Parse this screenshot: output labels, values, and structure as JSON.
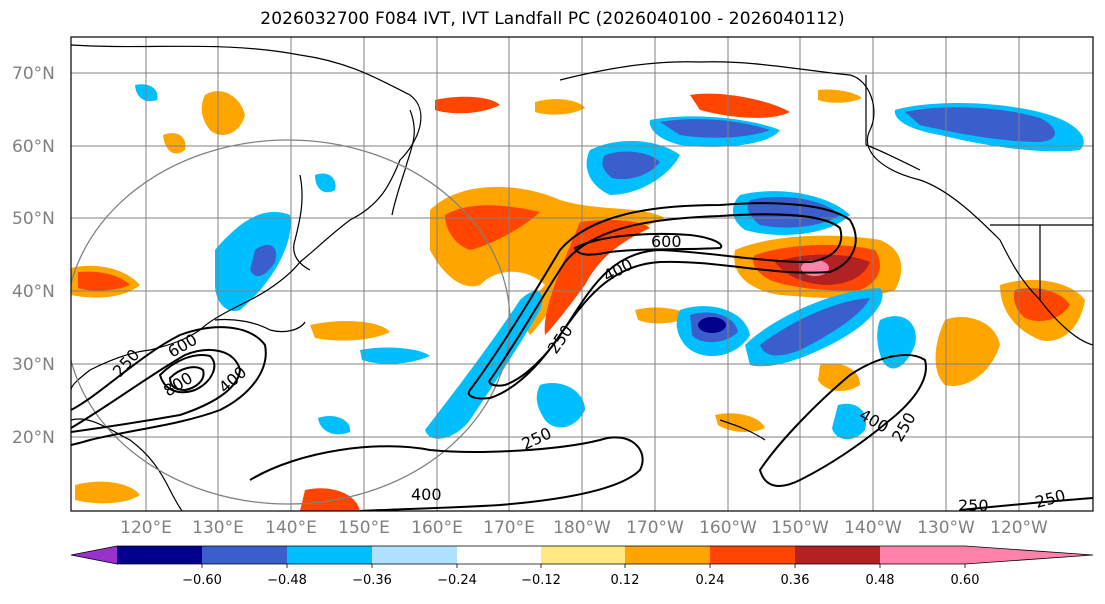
{
  "title": "2026032700 F084 IVT, IVT Landfall PC (2026040100 - 2026040112)",
  "lat_labels": [
    "70°N",
    "60°N",
    "50°N",
    "40°N",
    "30°N",
    "20°N"
  ],
  "lon_labels": [
    "120°E",
    "130°E",
    "140°E",
    "150°E",
    "160°E",
    "170°E",
    "180°W",
    "170°W",
    "160°W",
    "150°W",
    "140°W",
    "130°W",
    "120°W"
  ],
  "colorbar": {
    "ticks": [
      "−0.60",
      "−0.48",
      "−0.36",
      "−0.24",
      "−0.12",
      "0.12",
      "0.24",
      "0.36",
      "0.48",
      "0.60"
    ],
    "colors": [
      "#9932cc",
      "#00008b",
      "#3a5fcd",
      "#00bfff",
      "#b0e2ff",
      "#ffffff",
      "#ffe985",
      "#ffa500",
      "#ff4500",
      "#b22222",
      "#ff82ab"
    ]
  },
  "contour_labels": [
    "600",
    "400",
    "250",
    "250",
    "800",
    "600",
    "400",
    "250",
    "400",
    "250",
    "400",
    "250",
    "250"
  ]
}
